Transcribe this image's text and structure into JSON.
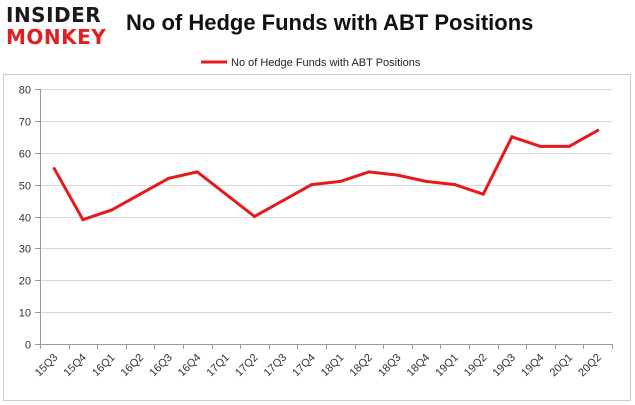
{
  "brand": {
    "top": "INSIDER",
    "bottom": "MONKEY"
  },
  "chart_data": {
    "type": "line",
    "title": "No of Hedge Funds with ABT Positions",
    "xlabel": "",
    "ylabel": "",
    "categories": [
      "15Q3",
      "15Q4",
      "16Q1",
      "16Q2",
      "16Q3",
      "16Q4",
      "17Q1",
      "17Q2",
      "17Q3",
      "17Q4",
      "18Q1",
      "18Q2",
      "18Q3",
      "18Q4",
      "19Q1",
      "19Q2",
      "19Q3",
      "19Q4",
      "20Q1",
      "20Q2"
    ],
    "series": [
      {
        "name": "No of Hedge Funds with ABT Positions",
        "color": "#e41a1c",
        "values": [
          55,
          39,
          42,
          47,
          52,
          54,
          47,
          40,
          45,
          50,
          51,
          54,
          53,
          51,
          50,
          47,
          65,
          62,
          62,
          67
        ]
      }
    ],
    "ylim": [
      0,
      80
    ],
    "yticks": [
      0,
      10,
      20,
      30,
      40,
      50,
      60,
      70,
      80
    ],
    "grid": true,
    "legend_position": "top-center"
  }
}
